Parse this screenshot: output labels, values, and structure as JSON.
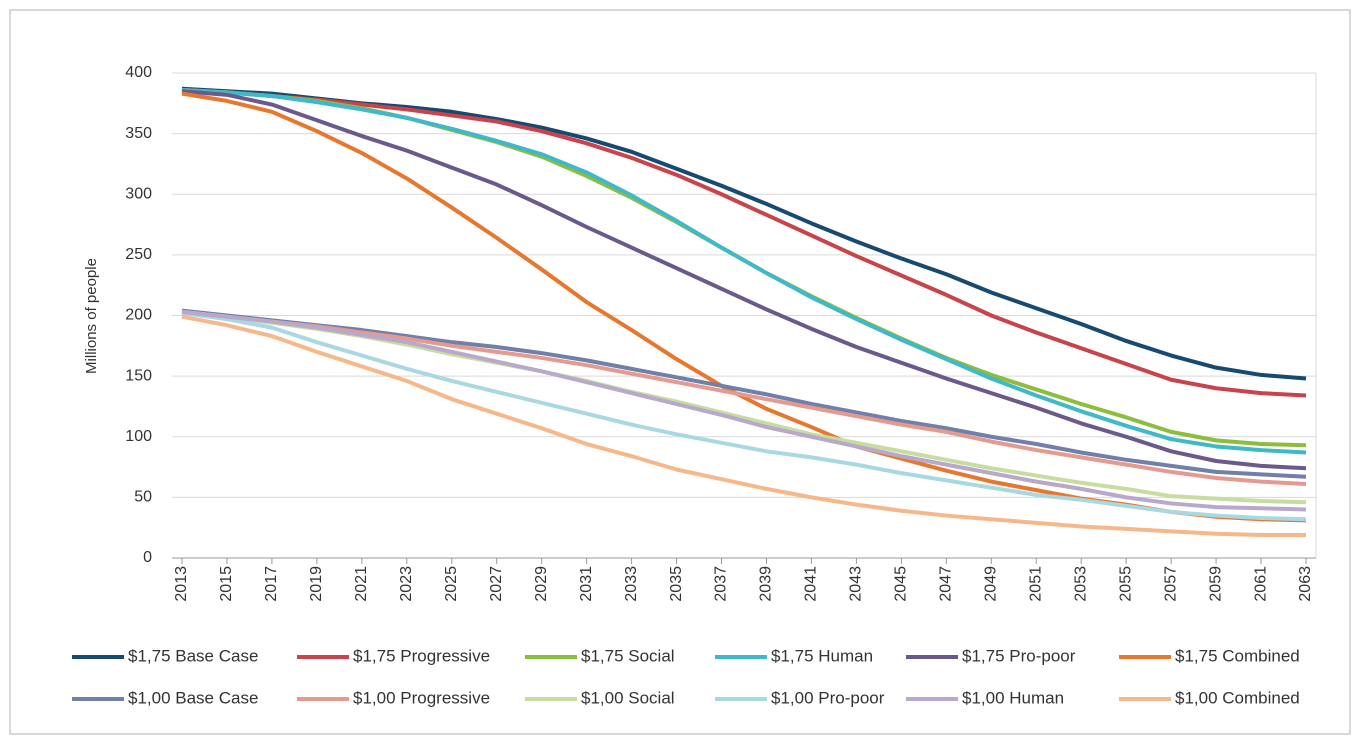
{
  "chart_data": {
    "type": "line",
    "y_label": "Millions of people",
    "x": [
      2013,
      2015,
      2017,
      2019,
      2021,
      2023,
      2025,
      2027,
      2029,
      2031,
      2033,
      2035,
      2037,
      2039,
      2041,
      2043,
      2045,
      2047,
      2049,
      2051,
      2053,
      2055,
      2057,
      2059,
      2061,
      2063
    ],
    "xlim": [
      2013,
      2063
    ],
    "ylim": [
      0,
      400
    ],
    "yticks": [
      0,
      50,
      100,
      150,
      200,
      250,
      300,
      350,
      400
    ],
    "grid": true,
    "series": [
      {
        "name": "$1,75 Base Case",
        "color": "#174a72",
        "values": [
          387,
          385,
          383,
          379,
          375,
          372,
          368,
          362,
          355,
          346,
          335,
          321,
          307,
          292,
          276,
          261,
          247,
          234,
          219,
          206,
          193,
          179,
          167,
          157,
          151,
          148
        ]
      },
      {
        "name": "$1,75 Progressive",
        "color": "#c8434a",
        "values": [
          386,
          384,
          381,
          378,
          374,
          370,
          365,
          360,
          352,
          342,
          330,
          316,
          300,
          283,
          266,
          249,
          233,
          217,
          200,
          186,
          173,
          160,
          147,
          140,
          136,
          134
        ]
      },
      {
        "name": "$1,75 Social",
        "color": "#8dbd3c",
        "values": [
          386,
          384,
          381,
          377,
          371,
          363,
          353,
          343,
          331,
          315,
          297,
          277,
          256,
          235,
          216,
          198,
          181,
          165,
          151,
          139,
          127,
          116,
          104,
          97,
          94,
          93
        ]
      },
      {
        "name": "$1,75 Human",
        "color": "#3fb8c9",
        "values": [
          386,
          384,
          381,
          376,
          370,
          363,
          354,
          344,
          333,
          318,
          299,
          278,
          256,
          235,
          215,
          197,
          180,
          164,
          148,
          134,
          121,
          109,
          98,
          92,
          89,
          87
        ]
      },
      {
        "name": "$1,75 Pro-poor",
        "color": "#6a5a8c",
        "values": [
          385,
          382,
          374,
          361,
          348,
          336,
          322,
          308,
          291,
          273,
          256,
          239,
          222,
          205,
          189,
          174,
          161,
          148,
          136,
          124,
          111,
          100,
          88,
          80,
          76,
          74
        ]
      },
      {
        "name": "$1,75 Combined",
        "color": "#e8772e",
        "values": [
          383,
          377,
          368,
          352,
          334,
          313,
          289,
          264,
          238,
          211,
          188,
          164,
          142,
          123,
          108,
          92,
          82,
          72,
          63,
          56,
          49,
          44,
          38,
          34,
          32,
          31
        ]
      },
      {
        "name": "$1,00 Base Case",
        "color": "#7080a8",
        "values": [
          204,
          200,
          196,
          192,
          188,
          183,
          178,
          174,
          169,
          163,
          156,
          149,
          142,
          135,
          127,
          120,
          113,
          107,
          100,
          94,
          87,
          81,
          76,
          71,
          69,
          67
        ]
      },
      {
        "name": "$1,00 Progressive",
        "color": "#e49a8e",
        "values": [
          203,
          199,
          195,
          191,
          186,
          181,
          175,
          170,
          165,
          159,
          152,
          145,
          138,
          131,
          124,
          117,
          110,
          104,
          96,
          89,
          83,
          77,
          71,
          66,
          63,
          61
        ]
      },
      {
        "name": "$1,00 Social",
        "color": "#c8dca0",
        "values": [
          203,
          199,
          194,
          189,
          183,
          176,
          168,
          161,
          154,
          146,
          137,
          129,
          120,
          111,
          102,
          95,
          88,
          81,
          74,
          68,
          62,
          57,
          51,
          49,
          47,
          46
        ]
      },
      {
        "name": "$1,00 Pro-poor",
        "color": "#a8d8e2",
        "values": [
          202,
          197,
          190,
          178,
          167,
          156,
          146,
          137,
          128,
          119,
          110,
          102,
          95,
          88,
          83,
          77,
          70,
          64,
          58,
          52,
          48,
          43,
          38,
          35,
          33,
          32
        ]
      },
      {
        "name": "$1,00 Human",
        "color": "#b8a8cc",
        "values": [
          203,
          199,
          195,
          190,
          184,
          178,
          170,
          162,
          154,
          145,
          136,
          127,
          118,
          108,
          100,
          92,
          84,
          77,
          70,
          63,
          57,
          50,
          45,
          42,
          41,
          40
        ]
      },
      {
        "name": "$1,00 Combined",
        "color": "#f6b88a",
        "values": [
          199,
          192,
          183,
          170,
          158,
          146,
          131,
          119,
          107,
          94,
          84,
          73,
          65,
          57,
          50,
          44,
          39,
          35,
          32,
          29,
          26,
          24,
          22,
          20,
          19,
          19
        ]
      }
    ]
  }
}
